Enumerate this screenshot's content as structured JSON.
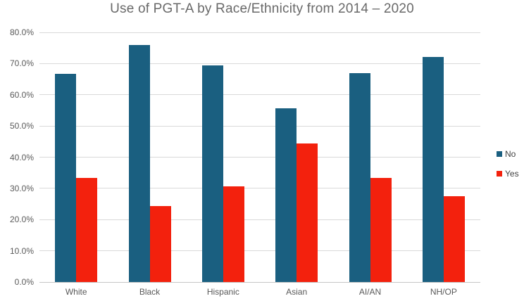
{
  "chart_data": {
    "type": "bar",
    "title": "Use of PGT-A by Race/Ethnicity from 2014 – 2020",
    "categories": [
      "White",
      "Black",
      "Hispanic",
      "Asian",
      "AI/AN",
      "NH/OP"
    ],
    "series": [
      {
        "name": "No",
        "color": "#1A5F80",
        "values": [
          66.8,
          76.0,
          69.5,
          55.7,
          66.9,
          72.2
        ]
      },
      {
        "name": "Yes",
        "color": "#F3210D",
        "values": [
          33.4,
          24.4,
          30.7,
          44.4,
          33.4,
          27.5
        ]
      }
    ],
    "xlabel": "",
    "ylabel": "",
    "ylim": [
      0,
      80
    ],
    "ytick_step": 10,
    "ytick_labels": [
      "0.0%",
      "10.0%",
      "20.0%",
      "30.0%",
      "40.0%",
      "50.0%",
      "60.0%",
      "70.0%",
      "80.0%"
    ],
    "grid": true,
    "legend_position": "right-middle"
  },
  "colors": {
    "grid": "#D9D9D9",
    "baseline": "#C6C6C6",
    "axis_text": "#595959",
    "title_text": "#696969",
    "legend_text": "#3F3F3F",
    "background": "#FFFFFF"
  }
}
